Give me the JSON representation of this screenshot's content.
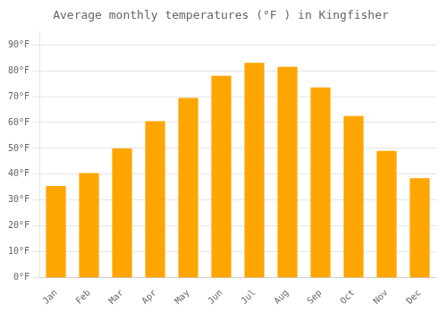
{
  "chart_data": {
    "type": "bar",
    "title": "Average monthly temperatures (°F ) in Kingfisher",
    "categories": [
      "Jan",
      "Feb",
      "Mar",
      "Apr",
      "May",
      "Jun",
      "Jul",
      "Aug",
      "Sep",
      "Oct",
      "Nov",
      "Dec"
    ],
    "values": [
      35.5,
      40.5,
      50.0,
      60.5,
      69.5,
      78.0,
      83.0,
      81.5,
      73.5,
      62.5,
      49.0,
      38.5
    ],
    "color": "#FFA500",
    "ylim": [
      0,
      95
    ],
    "yticks": [
      {
        "value": 0,
        "label": "0°F"
      },
      {
        "value": 10,
        "label": "10°F"
      },
      {
        "value": 20,
        "label": "20°F"
      },
      {
        "value": 30,
        "label": "30°F"
      },
      {
        "value": 40,
        "label": "40°F"
      },
      {
        "value": 50,
        "label": "50°F"
      },
      {
        "value": 60,
        "label": "60°F"
      },
      {
        "value": 70,
        "label": "70°F"
      },
      {
        "value": 80,
        "label": "80°F"
      },
      {
        "value": 90,
        "label": "90°F"
      }
    ],
    "grid": true
  }
}
